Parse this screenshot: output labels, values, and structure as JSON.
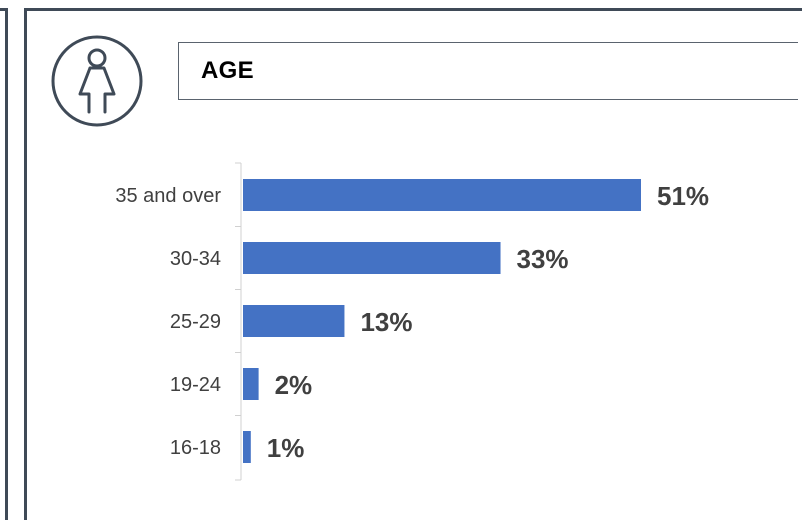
{
  "card": {
    "title": "AGE",
    "icon": "female-person-icon"
  },
  "colors": {
    "bar": "#4472c4",
    "frame": "#3f4a57",
    "axis": "#d0d0d0",
    "label": "#404040"
  },
  "chart_data": {
    "type": "bar",
    "orientation": "horizontal",
    "title": "AGE",
    "categories": [
      "35 and over",
      "30-34",
      "25-29",
      "19-24",
      "16-18"
    ],
    "values": [
      51,
      33,
      13,
      2,
      1
    ],
    "value_labels": [
      "51%",
      "33%",
      "13%",
      "2%",
      "1%"
    ],
    "unit": "%",
    "xlim": [
      0,
      51
    ],
    "grid": false,
    "legend": "none"
  }
}
